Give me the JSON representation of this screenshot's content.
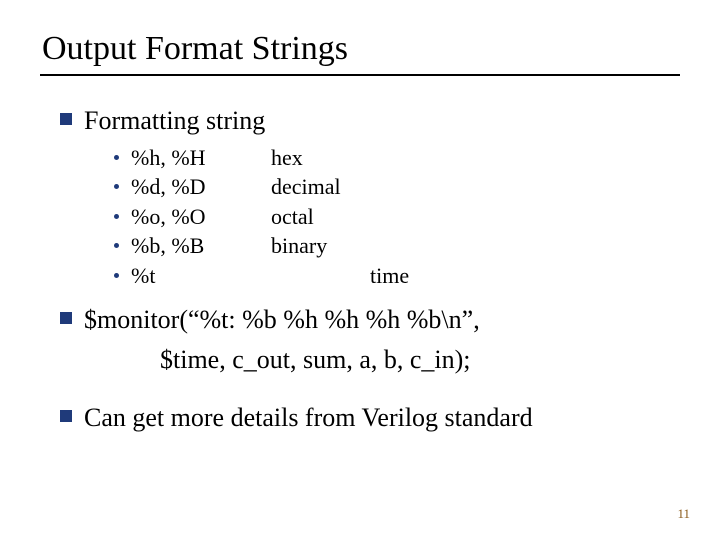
{
  "title": "Output Format Strings",
  "bullets": {
    "b1": {
      "text": "Formatting string"
    },
    "subs": [
      {
        "fmt": "%h, %H",
        "desc": "hex"
      },
      {
        "fmt": "%d, %D",
        "desc": "decimal"
      },
      {
        "fmt": "%o, %O",
        "desc": "octal"
      },
      {
        "fmt": "%b, %B",
        "desc": "binary"
      },
      {
        "fmt": "%t",
        "desc": "                  time"
      }
    ],
    "b2": {
      "line1": "$monitor(“%t: %b %h %h %h %b\\n”,",
      "line2": "$time, c_out, sum, a, b, c_in);"
    },
    "b3": {
      "text": "Can get more details from Verilog standard"
    }
  },
  "page_number": "11",
  "colors": {
    "bullet_color": "#1f3a7a",
    "page_num_color": "#8a5a1a"
  }
}
